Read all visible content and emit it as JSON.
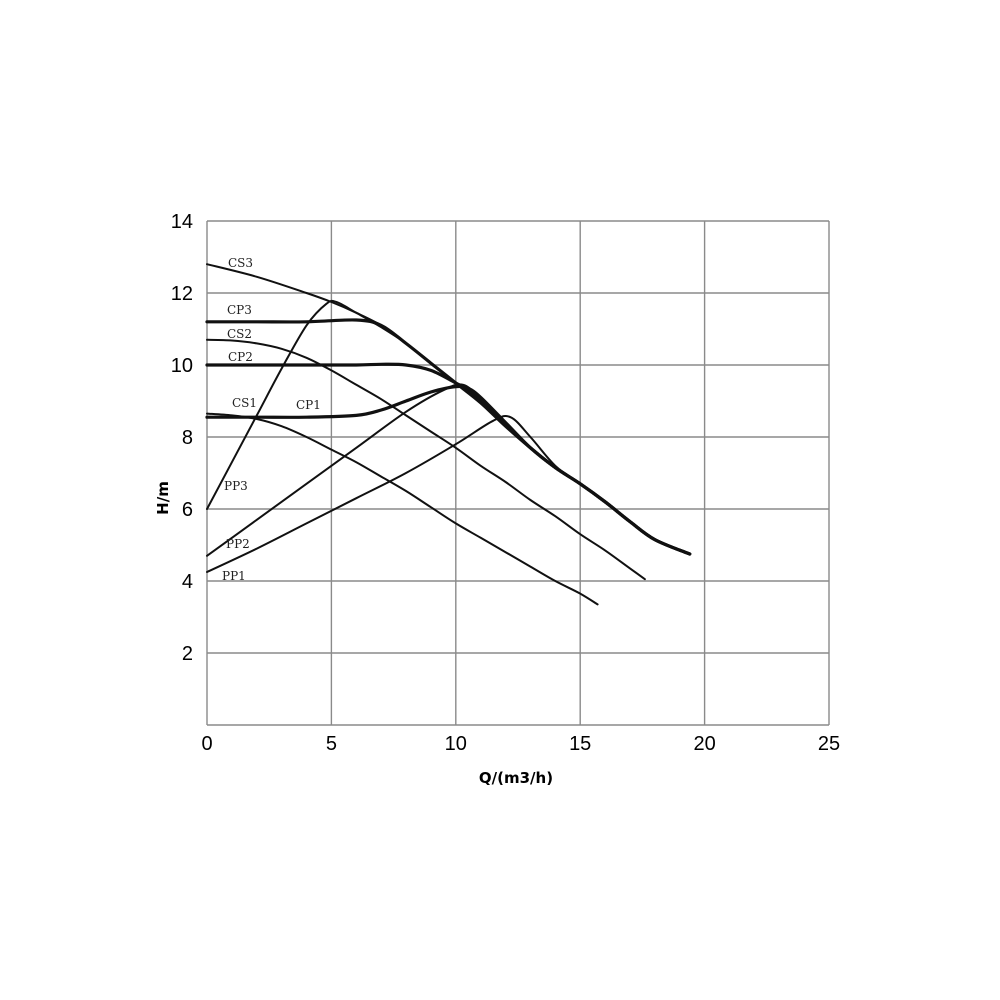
{
  "chart_data": {
    "type": "line",
    "title": "",
    "xlabel": "Q/(m3/h)",
    "ylabel": "H/m",
    "xlim": [
      0,
      25
    ],
    "ylim": [
      0,
      14
    ],
    "x_ticks": [
      "0",
      "5",
      "10",
      "15",
      "20",
      "25"
    ],
    "y_ticks": [
      "2",
      "4",
      "6",
      "8",
      "10",
      "12",
      "14"
    ],
    "grid": true,
    "legend": "inline labels",
    "series": [
      {
        "name": "CS3",
        "x": [
          0,
          2,
          4,
          5,
          6,
          7,
          8,
          9,
          10,
          11,
          12,
          13,
          14,
          15,
          16,
          17,
          18,
          19.4
        ],
        "y": [
          12.8,
          12.45,
          12.0,
          11.75,
          11.45,
          11.1,
          10.6,
          10.05,
          9.5,
          8.95,
          8.3,
          7.7,
          7.15,
          6.7,
          6.2,
          5.65,
          5.15,
          4.75
        ]
      },
      {
        "name": "CP3",
        "x": [
          0,
          2,
          4,
          6,
          7,
          8,
          9,
          10,
          11,
          12,
          13,
          14,
          15,
          16,
          17,
          18,
          19.4
        ],
        "y": [
          11.2,
          11.2,
          11.2,
          11.25,
          11.1,
          10.6,
          10.05,
          9.5,
          8.95,
          8.3,
          7.7,
          7.15,
          6.7,
          6.2,
          5.65,
          5.15,
          4.75
        ]
      },
      {
        "name": "CS2",
        "x": [
          0,
          1,
          2,
          3,
          4,
          5,
          6,
          7,
          8,
          9,
          10,
          11,
          12,
          13,
          14,
          15,
          16,
          17,
          17.6
        ],
        "y": [
          10.7,
          10.68,
          10.6,
          10.45,
          10.2,
          9.85,
          9.45,
          9.05,
          8.6,
          8.15,
          7.7,
          7.2,
          6.75,
          6.25,
          5.8,
          5.3,
          4.85,
          4.35,
          4.05
        ]
      },
      {
        "name": "CP2",
        "x": [
          0,
          2,
          4,
          6,
          7,
          8,
          9,
          10,
          10.5,
          11,
          12,
          13,
          14,
          15,
          16,
          17,
          18,
          19.4
        ],
        "y": [
          10.0,
          10.0,
          10.0,
          10.0,
          10.02,
          10.0,
          9.85,
          9.5,
          9.3,
          9.0,
          8.35,
          7.7,
          7.15,
          6.7,
          6.2,
          5.65,
          5.15,
          4.75
        ]
      },
      {
        "name": "CS1",
        "x": [
          0,
          1,
          2,
          3,
          4,
          5,
          6,
          7,
          8,
          9,
          10,
          11,
          12,
          13,
          14,
          15,
          15.7
        ],
        "y": [
          8.65,
          8.6,
          8.5,
          8.3,
          8.0,
          7.65,
          7.3,
          6.9,
          6.5,
          6.05,
          5.6,
          5.2,
          4.8,
          4.4,
          4.0,
          3.65,
          3.35
        ]
      },
      {
        "name": "CP1",
        "x": [
          0,
          2,
          4,
          6,
          7,
          8,
          9,
          10,
          10.5,
          11,
          12,
          13,
          14,
          15,
          16,
          17,
          18,
          19.4
        ],
        "y": [
          8.55,
          8.55,
          8.55,
          8.6,
          8.75,
          9.0,
          9.25,
          9.4,
          9.35,
          9.1,
          8.4,
          7.7,
          7.15,
          6.7,
          6.2,
          5.65,
          5.15,
          4.75
        ]
      },
      {
        "name": "PP3",
        "x": [
          0,
          1,
          2,
          3,
          4,
          4.8,
          5.2,
          6,
          7,
          8,
          9,
          10,
          11,
          12,
          13,
          14,
          15,
          16,
          17,
          18,
          19.4
        ],
        "y": [
          6.0,
          7.3,
          8.6,
          9.9,
          11.1,
          11.7,
          11.75,
          11.45,
          11.05,
          10.6,
          10.05,
          9.5,
          8.95,
          8.3,
          7.7,
          7.15,
          6.7,
          6.2,
          5.65,
          5.15,
          4.75
        ]
      },
      {
        "name": "PP2",
        "x": [
          0,
          2,
          4,
          6,
          8,
          9.5,
          10.3,
          11,
          12,
          13,
          14,
          15,
          16,
          17,
          18,
          19.4
        ],
        "y": [
          4.7,
          5.7,
          6.7,
          7.7,
          8.7,
          9.3,
          9.45,
          9.05,
          8.35,
          7.7,
          7.15,
          6.7,
          6.2,
          5.65,
          5.15,
          4.75
        ]
      },
      {
        "name": "PP1",
        "x": [
          0,
          2,
          4,
          6,
          8,
          10,
          11.5,
          12.2,
          13,
          14,
          15,
          16,
          17,
          18,
          19.4
        ],
        "y": [
          4.25,
          4.9,
          5.6,
          6.3,
          7.0,
          7.8,
          8.45,
          8.55,
          8.0,
          7.2,
          6.7,
          6.2,
          5.65,
          5.15,
          4.75
        ]
      }
    ]
  },
  "labels": {
    "CS3": "CS3",
    "CP3": "CP3",
    "CS2": "CS2",
    "CP2": "CP2",
    "CS1": "CS1",
    "CP1": "CP1",
    "PP3": "PP3",
    "PP2": "PP2",
    "PP1": "PP1"
  }
}
